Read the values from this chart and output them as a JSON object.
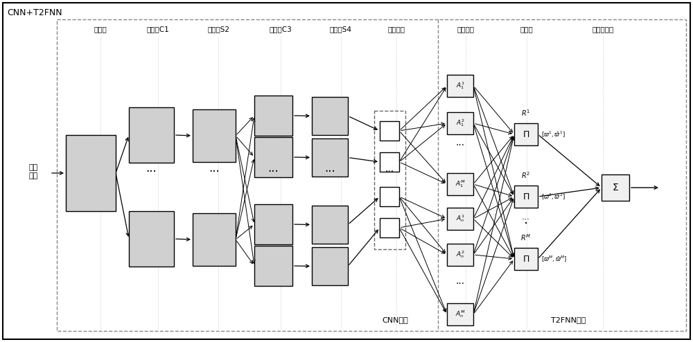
{
  "title": "CNN+T2FNN",
  "bg_color": "#ffffff",
  "layer_labels": [
    "输入层",
    "卷积层C1",
    "采样层S2",
    "卷积层C3",
    "采样层S4",
    "光栅化层",
    "模糊化层",
    "规则层",
    "降型输出层"
  ],
  "input_label": "场景\n图像",
  "cnn_label": "CNN部分",
  "t2fnn_label": "T2FNN部分",
  "rule_labels": [
    "[$\\varpi^1, \\bar{\\varpi}^1$]",
    "[$\\varpi^2, \\bar{\\varpi}^2$]",
    "[$\\varpi^M, \\bar{\\varpi}^M$]"
  ],
  "sum_label": "$\\Sigma$",
  "fuzzy_labels_top": [
    "$A_1^1$",
    "$A_1^2$",
    "$A_1^M$"
  ],
  "fuzzy_labels_bot": [
    "$A_n^1$",
    "$A_n^2$",
    "$A_n^M$"
  ],
  "rule_header_labels": [
    "$R^1$",
    "$R^2$",
    "$R^M$"
  ]
}
